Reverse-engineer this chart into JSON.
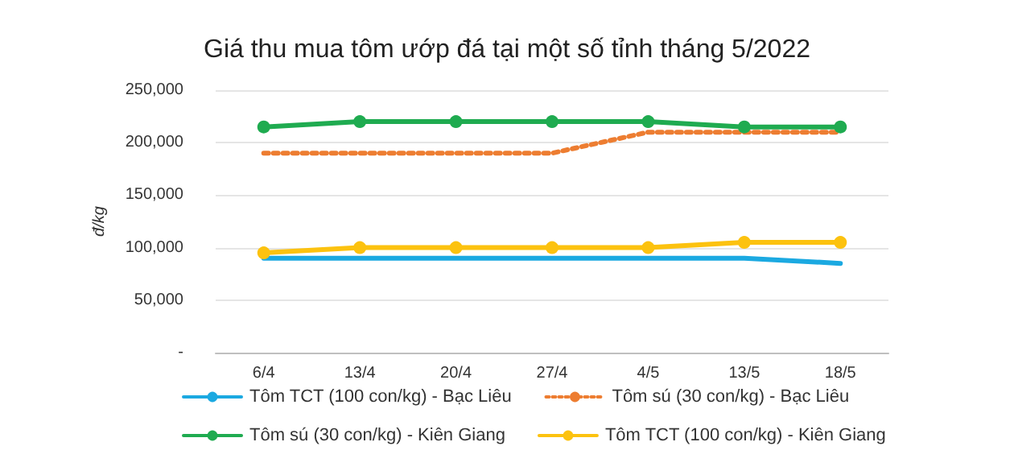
{
  "chart_data": {
    "type": "line",
    "title": "Giá thu mua tôm ướp đá tại một số tỉnh tháng 5/2022",
    "ylabel": "đ/kg",
    "categories": [
      "6/4",
      "13/4",
      "20/4",
      "27/4",
      "4/5",
      "13/5",
      "18/5"
    ],
    "series": [
      {
        "name": "Tôm TCT (100 con/kg) - Bạc Liêu",
        "color": "#1ba9e1",
        "marker": "none",
        "line_style": "solid",
        "values": [
          90000,
          90000,
          90000,
          90000,
          90000,
          90000,
          85000
        ]
      },
      {
        "name": "Tôm sú (30 con/kg) - Bạc Liêu",
        "color": "#ed7d31",
        "marker": "none",
        "line_style": "dotted",
        "values": [
          190000,
          190000,
          190000,
          190000,
          210000,
          210000,
          210000
        ]
      },
      {
        "name": "Tôm sú (30 con/kg) - Kiên Giang",
        "color": "#1fab50",
        "marker": "circle",
        "line_style": "solid",
        "values": [
          215000,
          220000,
          220000,
          220000,
          220000,
          215000,
          215000
        ]
      },
      {
        "name": "Tôm TCT (100 con/kg) - Kiên Giang",
        "color": "#fcc20f",
        "marker": "circle",
        "line_style": "solid",
        "values": [
          95000,
          100000,
          100000,
          100000,
          100000,
          105000,
          105000
        ]
      }
    ],
    "ylim": [
      0,
      250000
    ],
    "yticks": [
      {
        "value": 0,
        "label": "-"
      },
      {
        "value": 50000,
        "label": "50,000"
      },
      {
        "value": 100000,
        "label": "100,000"
      },
      {
        "value": 150000,
        "label": "150,000"
      },
      {
        "value": 200000,
        "label": "200,000"
      },
      {
        "value": 250000,
        "label": "250,000"
      }
    ],
    "grid": "y",
    "legend": "bottom"
  }
}
